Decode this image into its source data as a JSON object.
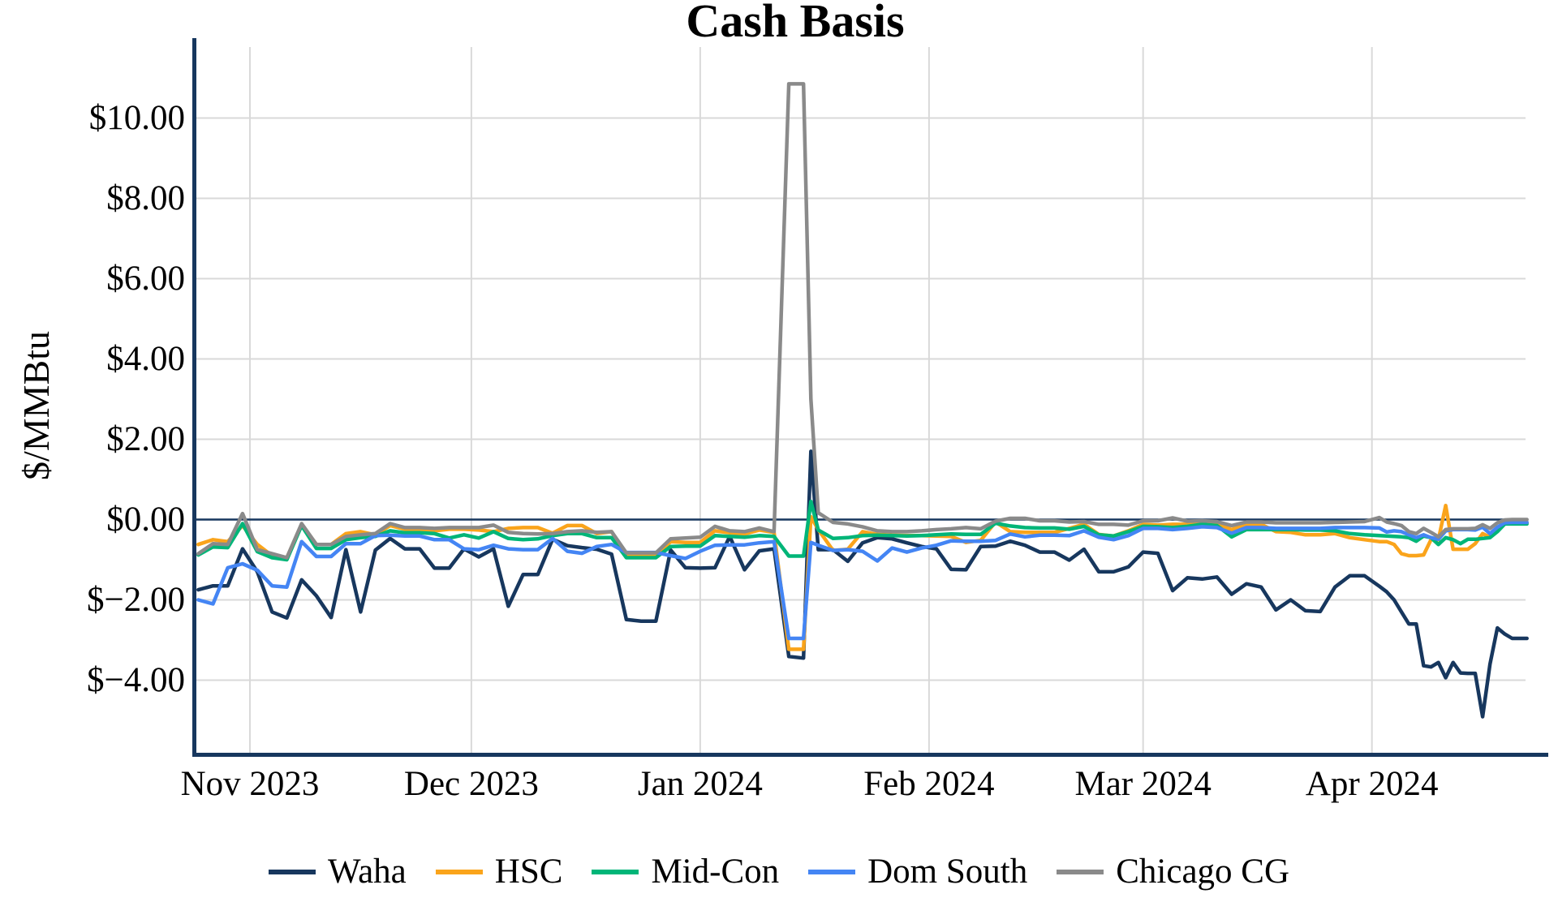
{
  "chart": {
    "title": "Cash Basis",
    "ylabel": "$/MMBtu"
  },
  "colors": {
    "axis": "#17375e",
    "zero_line": "#17375e",
    "grid": "#d9d9d9",
    "background": "#ffffff"
  },
  "chart_data": {
    "type": "line",
    "title": "Cash Basis",
    "xlabel": "",
    "ylabel": "$/MMBtu",
    "grid": true,
    "legend_position": "bottom",
    "ylim": [
      -5.8,
      11.8
    ],
    "y_axis": {
      "ticks": [
        {
          "label": "$10.00",
          "value": 10
        },
        {
          "label": "$8.00",
          "value": 8
        },
        {
          "label": "$6.00",
          "value": 6
        },
        {
          "label": "$4.00",
          "value": 4
        },
        {
          "label": "$2.00",
          "value": 2
        },
        {
          "label": "$0.00",
          "value": 0
        },
        {
          "label": "$−2.00",
          "value": -2
        },
        {
          "label": "$−4.00",
          "value": -4
        }
      ]
    },
    "x_axis": {
      "ticks": [
        {
          "label": "Nov 2023",
          "date": "2023-11-01"
        },
        {
          "label": "Dec 2023",
          "date": "2023-12-01"
        },
        {
          "label": "Jan 2024",
          "date": "2024-01-01"
        },
        {
          "label": "Feb 2024",
          "date": "2024-02-01"
        },
        {
          "label": "Mar 2024",
          "date": "2024-03-01"
        },
        {
          "label": "Apr 2024",
          "date": "2024-04-01"
        }
      ]
    },
    "x": [
      "2023-10-25",
      "2023-10-27",
      "2023-10-29",
      "2023-10-31",
      "2023-11-02",
      "2023-11-04",
      "2023-11-06",
      "2023-11-08",
      "2023-11-10",
      "2023-11-12",
      "2023-11-14",
      "2023-11-16",
      "2023-11-18",
      "2023-11-20",
      "2023-11-22",
      "2023-11-24",
      "2023-11-26",
      "2023-11-28",
      "2023-11-30",
      "2023-12-02",
      "2023-12-04",
      "2023-12-06",
      "2023-12-08",
      "2023-12-10",
      "2023-12-12",
      "2023-12-14",
      "2023-12-16",
      "2023-12-18",
      "2023-12-20",
      "2023-12-22",
      "2023-12-24",
      "2023-12-26",
      "2023-12-28",
      "2023-12-30",
      "2024-01-01",
      "2024-01-03",
      "2024-01-05",
      "2024-01-07",
      "2024-01-09",
      "2024-01-11",
      "2024-01-13",
      "2024-01-15",
      "2024-01-16",
      "2024-01-17",
      "2024-01-19",
      "2024-01-21",
      "2024-01-23",
      "2024-01-25",
      "2024-01-27",
      "2024-01-29",
      "2024-01-31",
      "2024-02-02",
      "2024-02-04",
      "2024-02-06",
      "2024-02-08",
      "2024-02-10",
      "2024-02-12",
      "2024-02-14",
      "2024-02-16",
      "2024-02-18",
      "2024-02-20",
      "2024-02-22",
      "2024-02-24",
      "2024-02-26",
      "2024-02-28",
      "2024-03-01",
      "2024-03-03",
      "2024-03-05",
      "2024-03-07",
      "2024-03-09",
      "2024-03-11",
      "2024-03-13",
      "2024-03-15",
      "2024-03-17",
      "2024-03-19",
      "2024-03-21",
      "2024-03-23",
      "2024-03-25",
      "2024-03-27",
      "2024-03-29",
      "2024-03-31",
      "2024-04-02",
      "2024-04-03",
      "2024-04-04",
      "2024-04-05",
      "2024-04-06",
      "2024-04-07",
      "2024-04-08",
      "2024-04-09",
      "2024-04-10",
      "2024-04-11",
      "2024-04-12",
      "2024-04-13",
      "2024-04-14",
      "2024-04-15",
      "2024-04-16",
      "2024-04-17",
      "2024-04-18",
      "2024-04-19",
      "2024-04-20",
      "2024-04-21",
      "2024-04-22"
    ],
    "series": [
      {
        "name": "Waha",
        "color": "#17375e",
        "values": [
          -1.75,
          -1.65,
          -1.65,
          -0.73,
          -1.3,
          -2.3,
          -2.45,
          -1.5,
          -1.9,
          -2.44,
          -0.75,
          -2.3,
          -0.76,
          -0.47,
          -0.73,
          -0.73,
          -1.21,
          -1.21,
          -0.73,
          -0.93,
          -0.73,
          -2.16,
          -1.37,
          -1.37,
          -0.49,
          -0.65,
          -0.7,
          -0.74,
          -0.86,
          -2.49,
          -2.53,
          -2.53,
          -0.76,
          -1.2,
          -1.21,
          -1.2,
          -0.42,
          -1.25,
          -0.78,
          -0.73,
          -3.41,
          -3.45,
          1.7,
          -0.75,
          -0.75,
          -1.04,
          -0.58,
          -0.45,
          -0.48,
          -0.58,
          -0.67,
          -0.73,
          -1.24,
          -1.25,
          -0.67,
          -0.66,
          -0.54,
          -0.64,
          -0.81,
          -0.81,
          -1.01,
          -0.74,
          -1.3,
          -1.3,
          -1.18,
          -0.81,
          -0.84,
          -1.77,
          -1.45,
          -1.48,
          -1.43,
          -1.86,
          -1.6,
          -1.68,
          -2.25,
          -2.0,
          -2.27,
          -2.29,
          -1.68,
          -1.4,
          -1.4,
          -1.66,
          -1.8,
          -2.0,
          -2.3,
          -2.6,
          -2.6,
          -3.64,
          -3.67,
          -3.56,
          -3.94,
          -3.56,
          -3.82,
          -3.83,
          -3.83,
          -4.91,
          -3.6,
          -2.7,
          -2.85,
          -2.96,
          -2.96,
          -2.96
        ]
      },
      {
        "name": "HSC",
        "color": "#faa41b",
        "values": [
          -0.62,
          -0.5,
          -0.55,
          -0.15,
          -0.62,
          -0.9,
          -0.95,
          -0.12,
          -0.62,
          -0.62,
          -0.35,
          -0.3,
          -0.38,
          -0.15,
          -0.24,
          -0.24,
          -0.28,
          -0.24,
          -0.24,
          -0.26,
          -0.3,
          -0.22,
          -0.2,
          -0.2,
          -0.34,
          -0.15,
          -0.15,
          -0.35,
          -0.3,
          -0.9,
          -0.9,
          -0.9,
          -0.55,
          -0.57,
          -0.57,
          -0.28,
          -0.33,
          -0.36,
          -0.26,
          -0.32,
          -3.23,
          -3.23,
          0.07,
          -0.25,
          -0.77,
          -0.74,
          -0.3,
          -0.37,
          -0.39,
          -0.4,
          -0.4,
          -0.41,
          -0.42,
          -0.57,
          -0.52,
          -0.06,
          -0.3,
          -0.32,
          -0.32,
          -0.32,
          -0.22,
          -0.12,
          -0.37,
          -0.41,
          -0.28,
          -0.12,
          -0.14,
          -0.12,
          -0.12,
          -0.07,
          -0.1,
          -0.25,
          -0.12,
          -0.12,
          -0.3,
          -0.32,
          -0.38,
          -0.38,
          -0.35,
          -0.45,
          -0.5,
          -0.55,
          -0.55,
          -0.62,
          -0.85,
          -0.9,
          -0.9,
          -0.88,
          -0.5,
          -0.5,
          0.35,
          -0.74,
          -0.74,
          -0.74,
          -0.6,
          -0.35,
          -0.44,
          -0.2,
          -0.08,
          -0.07,
          -0.07,
          -0.07
        ]
      },
      {
        "name": "Mid-Con",
        "color": "#00b578",
        "values": [
          -0.88,
          -0.68,
          -0.7,
          -0.1,
          -0.8,
          -0.95,
          -1.0,
          -0.15,
          -0.72,
          -0.72,
          -0.5,
          -0.45,
          -0.42,
          -0.28,
          -0.33,
          -0.33,
          -0.35,
          -0.46,
          -0.38,
          -0.46,
          -0.3,
          -0.47,
          -0.5,
          -0.48,
          -0.4,
          -0.35,
          -0.35,
          -0.45,
          -0.45,
          -0.95,
          -0.95,
          -0.95,
          -0.67,
          -0.66,
          -0.66,
          -0.4,
          -0.42,
          -0.44,
          -0.4,
          -0.42,
          -0.91,
          -0.91,
          0.45,
          -0.26,
          -0.47,
          -0.45,
          -0.4,
          -0.39,
          -0.4,
          -0.41,
          -0.4,
          -0.38,
          -0.36,
          -0.37,
          -0.37,
          -0.09,
          -0.16,
          -0.2,
          -0.21,
          -0.21,
          -0.24,
          -0.17,
          -0.38,
          -0.41,
          -0.3,
          -0.17,
          -0.18,
          -0.2,
          -0.17,
          -0.12,
          -0.15,
          -0.43,
          -0.25,
          -0.25,
          -0.25,
          -0.25,
          -0.26,
          -0.26,
          -0.28,
          -0.35,
          -0.38,
          -0.4,
          -0.41,
          -0.42,
          -0.43,
          -0.45,
          -0.54,
          -0.41,
          -0.45,
          -0.62,
          -0.45,
          -0.5,
          -0.6,
          -0.49,
          -0.49,
          -0.47,
          -0.45,
          -0.3,
          -0.11,
          -0.11,
          -0.11,
          -0.11
        ]
      },
      {
        "name": "Dom South",
        "color": "#4485f4",
        "values": [
          -2.0,
          -2.1,
          -1.2,
          -1.1,
          -1.26,
          -1.65,
          -1.68,
          -0.55,
          -0.92,
          -0.92,
          -0.6,
          -0.6,
          -0.4,
          -0.39,
          -0.41,
          -0.41,
          -0.5,
          -0.5,
          -0.73,
          -0.75,
          -0.64,
          -0.73,
          -0.75,
          -0.75,
          -0.47,
          -0.79,
          -0.84,
          -0.67,
          -0.62,
          -0.82,
          -0.82,
          -0.82,
          -0.9,
          -0.97,
          -0.79,
          -0.64,
          -0.63,
          -0.63,
          -0.58,
          -0.55,
          -2.96,
          -2.96,
          -0.57,
          -0.64,
          -0.77,
          -0.75,
          -0.79,
          -1.03,
          -0.71,
          -0.81,
          -0.71,
          -0.64,
          -0.53,
          -0.54,
          -0.54,
          -0.52,
          -0.36,
          -0.43,
          -0.39,
          -0.39,
          -0.4,
          -0.28,
          -0.44,
          -0.5,
          -0.4,
          -0.22,
          -0.22,
          -0.25,
          -0.22,
          -0.18,
          -0.2,
          -0.34,
          -0.2,
          -0.2,
          -0.22,
          -0.22,
          -0.22,
          -0.22,
          -0.2,
          -0.2,
          -0.2,
          -0.21,
          -0.31,
          -0.28,
          -0.3,
          -0.38,
          -0.45,
          -0.38,
          -0.45,
          -0.49,
          -0.28,
          -0.25,
          -0.25,
          -0.25,
          -0.26,
          -0.19,
          -0.35,
          -0.19,
          -0.08,
          -0.07,
          -0.07,
          -0.07
        ]
      },
      {
        "name": "Chicago CG",
        "color": "#8a8a8a",
        "values": [
          -0.85,
          -0.6,
          -0.62,
          0.15,
          -0.75,
          -0.85,
          -0.95,
          -0.1,
          -0.62,
          -0.62,
          -0.42,
          -0.38,
          -0.35,
          -0.1,
          -0.2,
          -0.2,
          -0.22,
          -0.2,
          -0.2,
          -0.2,
          -0.14,
          -0.32,
          -0.35,
          -0.36,
          -0.35,
          -0.3,
          -0.28,
          -0.32,
          -0.3,
          -0.83,
          -0.83,
          -0.83,
          -0.48,
          -0.46,
          -0.44,
          -0.17,
          -0.28,
          -0.3,
          -0.21,
          -0.3,
          10.85,
          10.85,
          3.0,
          0.17,
          -0.07,
          -0.11,
          -0.18,
          -0.28,
          -0.3,
          -0.3,
          -0.28,
          -0.25,
          -0.23,
          -0.2,
          -0.23,
          -0.04,
          0.03,
          0.03,
          -0.03,
          -0.03,
          -0.06,
          -0.05,
          -0.12,
          -0.12,
          -0.14,
          -0.03,
          -0.03,
          0.04,
          -0.04,
          -0.03,
          -0.05,
          -0.15,
          -0.06,
          -0.06,
          -0.08,
          -0.08,
          -0.08,
          -0.08,
          -0.07,
          -0.06,
          -0.05,
          0.05,
          -0.06,
          -0.1,
          -0.15,
          -0.3,
          -0.35,
          -0.22,
          -0.32,
          -0.43,
          -0.25,
          -0.23,
          -0.23,
          -0.23,
          -0.22,
          -0.13,
          -0.22,
          -0.08,
          -0.01,
          0.0,
          0.0,
          0.0
        ]
      }
    ]
  }
}
